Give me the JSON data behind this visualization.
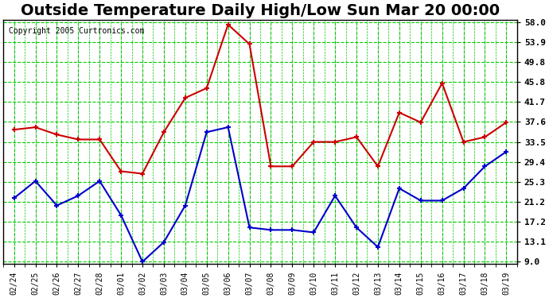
{
  "title": "Outside Temperature Daily High/Low Sun Mar 20 00:00",
  "copyright": "Copyright 2005 Curtronics.com",
  "x_labels": [
    "02/24",
    "02/25",
    "02/26",
    "02/27",
    "02/28",
    "03/01",
    "03/02",
    "03/03",
    "03/04",
    "03/05",
    "03/06",
    "03/07",
    "03/08",
    "03/09",
    "03/10",
    "03/11",
    "03/12",
    "03/13",
    "03/14",
    "03/15",
    "03/16",
    "03/17",
    "03/18",
    "03/19"
  ],
  "high_temps": [
    36.0,
    36.5,
    35.0,
    34.0,
    34.0,
    27.5,
    27.0,
    35.5,
    42.5,
    44.5,
    57.5,
    53.5,
    28.5,
    28.5,
    33.5,
    33.5,
    34.5,
    28.5,
    39.5,
    37.5,
    45.5,
    33.5,
    34.5,
    37.5
  ],
  "low_temps": [
    22.0,
    25.5,
    20.5,
    22.5,
    25.5,
    18.5,
    9.0,
    13.0,
    20.5,
    35.5,
    36.5,
    16.0,
    15.5,
    15.5,
    15.0,
    22.5,
    16.0,
    12.0,
    24.0,
    21.5,
    21.5,
    24.0,
    28.5,
    31.5
  ],
  "high_color": "#cc0000",
  "low_color": "#0000cc",
  "bg_color": "#ffffff",
  "plot_bg_color": "#ffffff",
  "grid_color": "#00cc00",
  "y_ticks": [
    9.0,
    13.1,
    17.2,
    21.2,
    25.3,
    29.4,
    33.5,
    37.6,
    41.7,
    45.8,
    49.8,
    53.9,
    58.0
  ],
  "y_min": 9.0,
  "y_max": 58.0,
  "title_fontsize": 14,
  "border_color": "#000000"
}
